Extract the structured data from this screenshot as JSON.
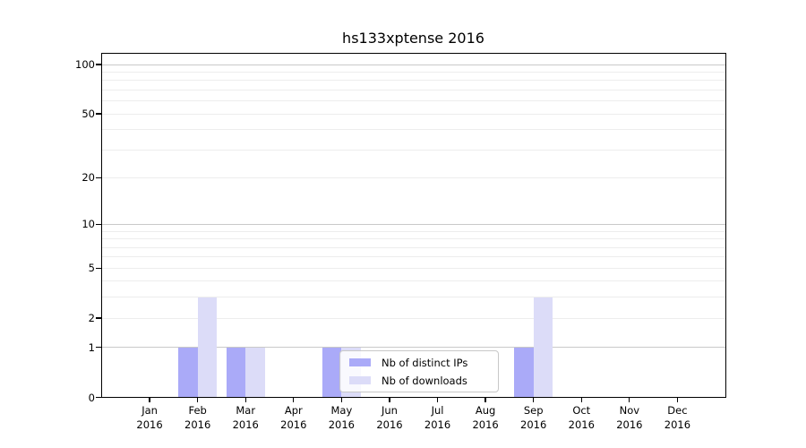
{
  "title": "hs133xptense 2016",
  "legend": {
    "items": [
      {
        "label": "Nb of distinct IPs",
        "color": "#aaaaf8"
      },
      {
        "label": "Nb of downloads",
        "color": "#dcdcf8"
      }
    ]
  },
  "chart_data": {
    "type": "bar",
    "title": "hs133xptense 2016",
    "categories": [
      "Jan 2016",
      "Feb 2016",
      "Mar 2016",
      "Apr 2016",
      "May 2016",
      "Jun 2016",
      "Jul 2016",
      "Aug 2016",
      "Sep 2016",
      "Oct 2016",
      "Nov 2016",
      "Dec 2016"
    ],
    "series": [
      {
        "name": "Nb of distinct IPs",
        "color": "#aaaaf8",
        "values": [
          0,
          1,
          1,
          0,
          1,
          0,
          0,
          0,
          1,
          0,
          0,
          0
        ]
      },
      {
        "name": "Nb of downloads",
        "color": "#dcdcf8",
        "values": [
          0,
          3,
          1,
          0,
          1,
          0,
          0,
          0,
          3,
          0,
          0,
          0
        ]
      }
    ],
    "xlabel": "",
    "ylabel": "",
    "yscale": "log1p",
    "ylim": [
      0,
      100
    ],
    "ytick_values": [
      0,
      1,
      2,
      5,
      10,
      20,
      50,
      100
    ],
    "ytick_labels": [
      "0",
      "1",
      "2",
      "5",
      "10",
      "20",
      "50",
      "100"
    ],
    "grid": "horizontal",
    "legend_position": "inside-bottom-center",
    "colors": {
      "grid_major": "#c9c9c9",
      "grid_minor": "#ededed",
      "axis": "#000000",
      "background": "#ffffff"
    }
  }
}
